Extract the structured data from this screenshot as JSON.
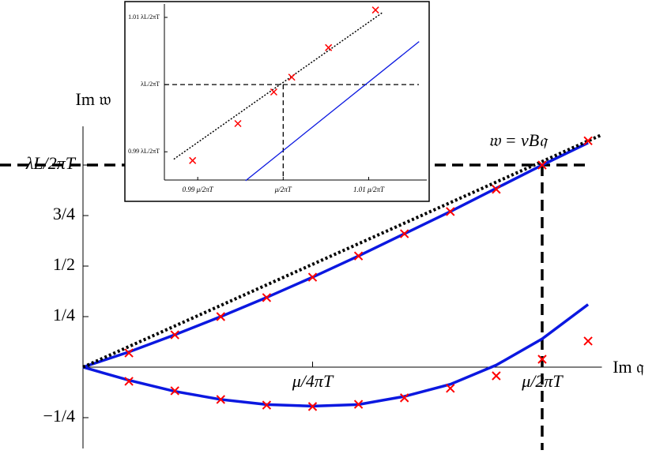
{
  "chart_data": [
    {
      "type": "line",
      "xlabel": "Im 𝔮",
      "ylabel": "Im 𝔴",
      "annotation": "𝔴 = vB𝔮",
      "xlim": [
        0,
        1.13
      ],
      "ylim": [
        -0.39,
        1.19
      ],
      "xticks": [
        {
          "value": 0.5,
          "label": "μ/4πT"
        },
        {
          "value": 1,
          "label": "μ/2πT"
        }
      ],
      "yticks": [
        {
          "value": -0.25,
          "label": "−1/4"
        },
        {
          "value": 0.25,
          "label": "1/4"
        },
        {
          "value": 0.5,
          "label": "1/2"
        },
        {
          "value": 0.75,
          "label": "3/4"
        },
        {
          "value": 1,
          "label": "λL/2πT"
        }
      ],
      "guides": {
        "x": 1,
        "y": 1
      },
      "series": [
        {
          "style": "line",
          "color": "#0b18e0",
          "x": [
            0,
            0.1,
            0.2,
            0.3,
            0.4,
            0.5,
            0.6,
            0.7,
            0.8,
            0.9,
            1.0,
            1.1
          ],
          "values": [
            0,
            0.075,
            0.16,
            0.25,
            0.345,
            0.445,
            0.55,
            0.66,
            0.77,
            0.885,
            1.0,
            1.11
          ]
        },
        {
          "style": "line",
          "color": "#0b18e0",
          "x": [
            0,
            0.1,
            0.2,
            0.3,
            0.4,
            0.5,
            0.6,
            0.7,
            0.8,
            0.9,
            1.0,
            1.1
          ],
          "values": [
            0,
            -0.065,
            -0.12,
            -0.16,
            -0.185,
            -0.193,
            -0.185,
            -0.145,
            -0.085,
            0.01,
            0.14,
            0.31
          ]
        },
        {
          "style": "dotted",
          "color": "#000000",
          "x": [
            0,
            1.13
          ],
          "values": [
            0,
            1.15
          ]
        },
        {
          "style": "cross",
          "color": "#ff0000",
          "x": [
            0.1,
            0.2,
            0.3,
            0.4,
            0.5,
            0.6,
            0.7,
            0.8,
            0.9,
            1.0,
            1.1
          ],
          "values": [
            0.07,
            0.16,
            0.25,
            0.344,
            0.445,
            0.55,
            0.66,
            0.77,
            0.88,
            1.0,
            1.12
          ]
        },
        {
          "style": "cross",
          "color": "#ff0000",
          "x": [
            0.1,
            0.2,
            0.3,
            0.4,
            0.5,
            0.6,
            0.7,
            0.8,
            0.9,
            1.0,
            1.1
          ],
          "values": [
            -0.07,
            -0.117,
            -0.16,
            -0.188,
            -0.195,
            -0.184,
            -0.152,
            -0.105,
            -0.043,
            0.039,
            0.129
          ]
        }
      ]
    },
    {
      "type": "line",
      "xlim": [
        0.9861,
        1.0168
      ],
      "ylim": [
        0.9858,
        1.012
      ],
      "xticks": [
        {
          "value": 0.99,
          "label": "0.99 μ/2πT"
        },
        {
          "value": 1,
          "label": "μ/2πT"
        },
        {
          "value": 1.01,
          "label": "1.01 μ/2πT"
        }
      ],
      "yticks": [
        {
          "value": 0.99,
          "label": "0.99 λL/2πT"
        },
        {
          "value": 1,
          "label": "λL/2πT"
        },
        {
          "value": 1.01,
          "label": "1.01 λL/2πT"
        }
      ],
      "guides": {
        "x": 1,
        "y": 1
      },
      "series": [
        {
          "style": "dotted",
          "color": "#000000",
          "x": [
            0.9872,
            1.0116
          ],
          "values": [
            0.9889,
            1.0107
          ]
        },
        {
          "style": "line",
          "color": "#0b18e0",
          "x": [
            0.9956,
            1.0159
          ],
          "values": [
            0.9857,
            1.0064
          ]
        },
        {
          "style": "cross",
          "color": "#ff0000",
          "x": [
            0.9894,
            0.9947,
            0.9989,
            1.001,
            1.0053,
            1.0108
          ],
          "values": [
            0.9887,
            0.9942,
            0.9989,
            1.0011,
            1.0055,
            1.0111
          ]
        }
      ]
    }
  ]
}
